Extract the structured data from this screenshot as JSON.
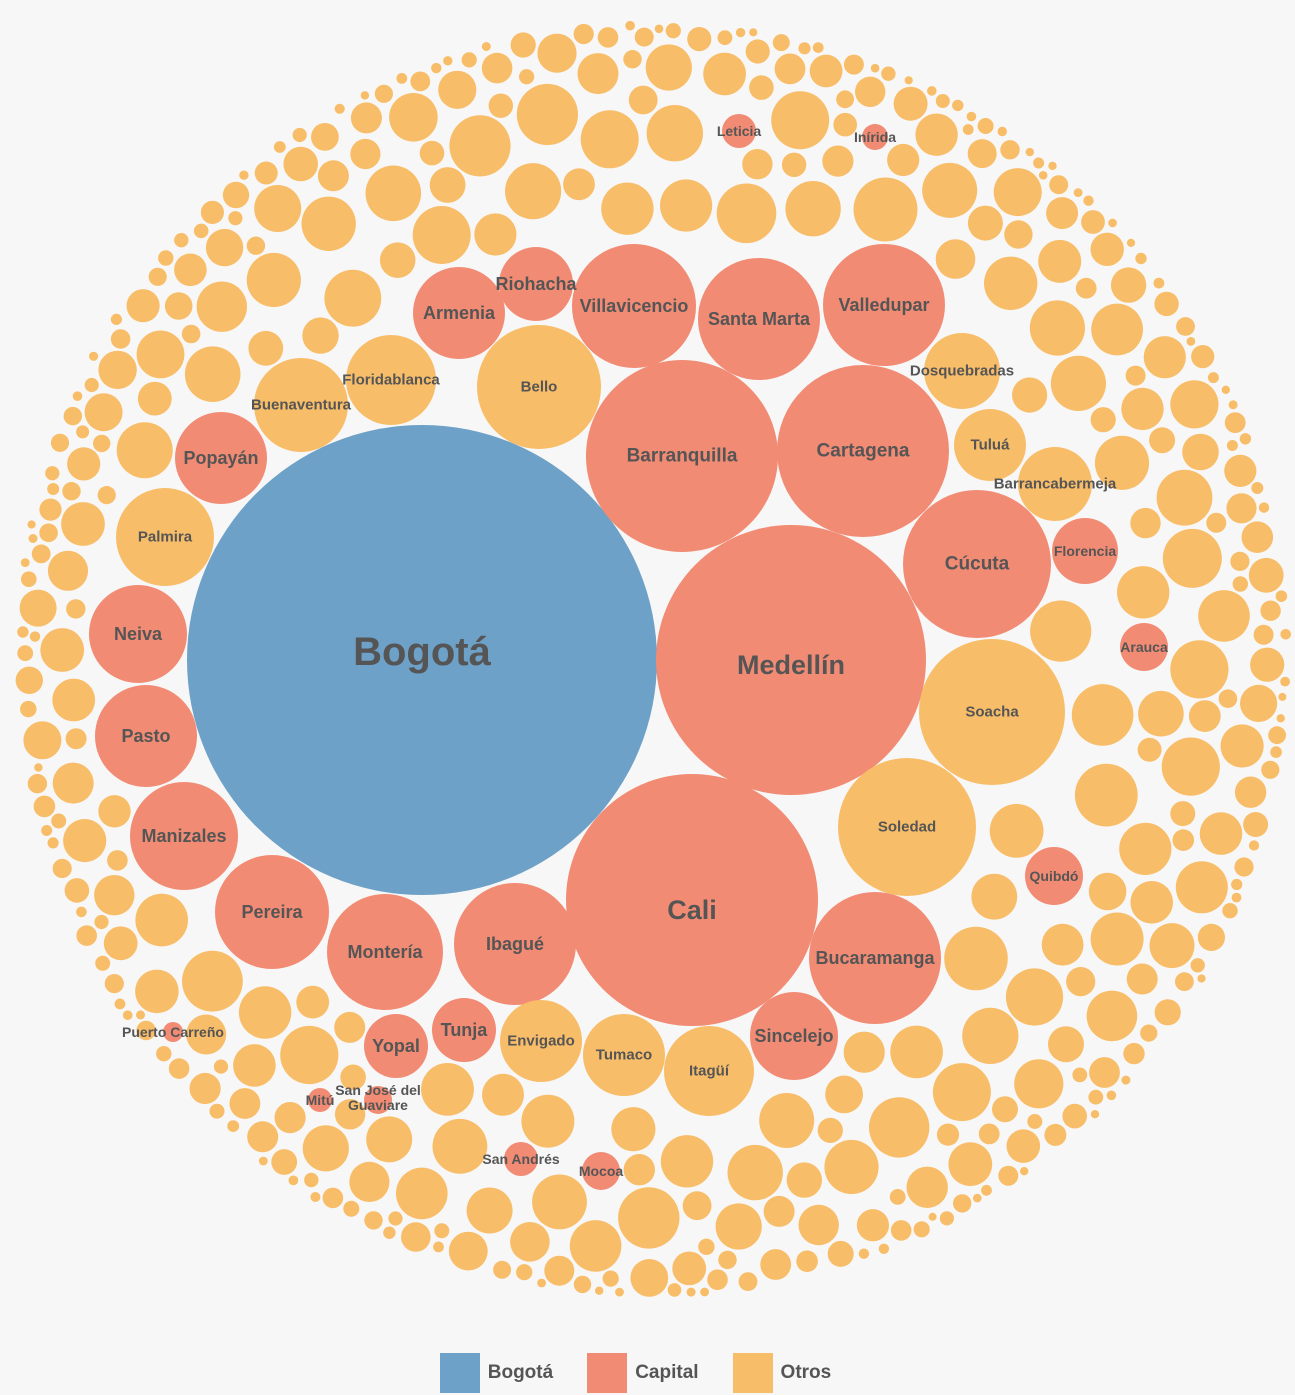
{
  "colors": {
    "bogota": "#6ea1c8",
    "capital": "#f28b74",
    "otros": "#f8bd68",
    "label": "#555555",
    "background": "#f7f7f7"
  },
  "legend": {
    "items": [
      {
        "key": "bogota",
        "label": "Bogotá"
      },
      {
        "key": "capital",
        "label": "Capital"
      },
      {
        "key": "otros",
        "label": "Otros"
      }
    ]
  },
  "chart_data": {
    "type": "packed-bubble",
    "title": "",
    "categories": [
      "Bogotá",
      "Capital",
      "Otros"
    ],
    "value_note": "",
    "series": [
      {
        "name": "Bogotá",
        "category": "bogota",
        "points": [
          {
            "label": "Bogotá",
            "value": 55
          }
        ]
      },
      {
        "name": "Capital",
        "category": "capital",
        "points": [
          {
            "label": "Medellín",
            "value": 15.7
          },
          {
            "label": "Cali",
            "value": 15.8
          },
          {
            "label": "Barranquilla",
            "value": 8.8
          },
          {
            "label": "Cartagena",
            "value": 7.2
          },
          {
            "label": "Cúcuta",
            "value": 5.2
          },
          {
            "label": "Bucaramanga",
            "value": 4.2
          },
          {
            "label": "Villavicencio",
            "value": 3.7
          },
          {
            "label": "Santa Marta",
            "value": 3.6
          },
          {
            "label": "Valledupar",
            "value": 3.6
          },
          {
            "label": "Ibagué",
            "value": 3.6
          },
          {
            "label": "Montería",
            "value": 3.3
          },
          {
            "label": "Pereira",
            "value": 3.2
          },
          {
            "label": "Manizales",
            "value": 2.9
          },
          {
            "label": "Pasto",
            "value": 2.6
          },
          {
            "label": "Neiva",
            "value": 2.4
          },
          {
            "label": "Popayán",
            "value": 2.1
          },
          {
            "label": "Armenia",
            "value": 2.1
          },
          {
            "label": "Sincelejo",
            "value": 1.9
          },
          {
            "label": "Riohacha",
            "value": 1.4
          },
          {
            "label": "Tunja",
            "value": 1.0
          },
          {
            "label": "Yopal",
            "value": 1.0
          },
          {
            "label": "Florencia",
            "value": 1.0
          },
          {
            "label": "Quibdó",
            "value": 0.8
          },
          {
            "label": "Arauca",
            "value": 0.6
          },
          {
            "label": "San Andrés",
            "value": 0.3
          },
          {
            "label": "Mocoa",
            "value": 0.35
          },
          {
            "label": "Leticia",
            "value": 0.3
          },
          {
            "label": "Inírida",
            "value": 0.2
          },
          {
            "label": "San José del Guaviare",
            "value": 0.2
          },
          {
            "label": "Mitú",
            "value": 0.15
          },
          {
            "label": "Puerto Carreño",
            "value": 0.1
          }
        ]
      },
      {
        "name": "Otros",
        "category": "otros",
        "points": [
          {
            "label": "Soacha",
            "value": 4.9
          },
          {
            "label": "Soledad",
            "value": 4.1
          },
          {
            "label": "Bello",
            "value": 3.1
          },
          {
            "label": "Palmira",
            "value": 2.2
          },
          {
            "label": "Buenaventura",
            "value": 2.1
          },
          {
            "label": "Floridablanca",
            "value": 1.9
          },
          {
            "label": "Envigado",
            "value": 1.5
          },
          {
            "label": "Tumaco",
            "value": 1.5
          },
          {
            "label": "Itagüí",
            "value": 1.8
          },
          {
            "label": "Dosquebradas",
            "value": 1.4
          },
          {
            "label": "Tuluá",
            "value": 1.3
          },
          {
            "label": "Barrancabermeja",
            "value": 1.3
          }
        ]
      }
    ]
  }
}
